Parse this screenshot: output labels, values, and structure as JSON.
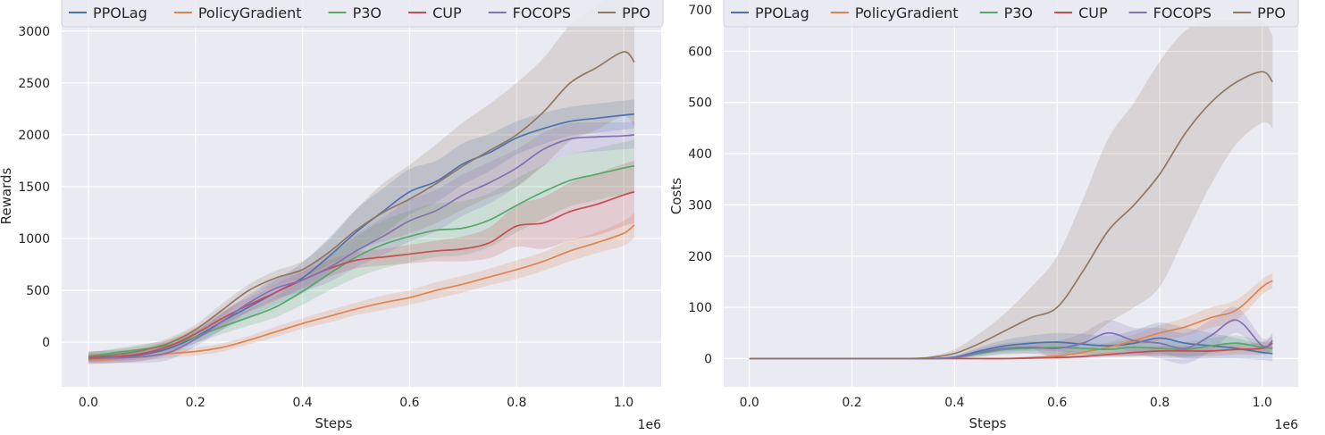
{
  "chart_data": [
    {
      "type": "line",
      "xlabel": "Steps",
      "ylabel": "Rewards",
      "x_multiplier": "1e6",
      "xlim": [
        -0.05,
        1.07
      ],
      "ylim": [
        -430,
        3300
      ],
      "xticks": [
        0.0,
        0.2,
        0.4,
        0.6,
        0.8,
        1.0
      ],
      "xtick_labels": [
        "0.0",
        "0.2",
        "0.4",
        "0.6",
        "0.8",
        "1.0"
      ],
      "yticks": [
        0,
        500,
        1000,
        1500,
        2000,
        2500,
        3000
      ],
      "ytick_labels": [
        "0",
        "500",
        "1000",
        "1500",
        "2000",
        "2500",
        "3000"
      ],
      "grid": true,
      "legend_position": "top",
      "x": [
        0.0,
        0.05,
        0.1,
        0.15,
        0.2,
        0.25,
        0.3,
        0.35,
        0.4,
        0.45,
        0.5,
        0.55,
        0.6,
        0.65,
        0.7,
        0.75,
        0.8,
        0.85,
        0.9,
        0.95,
        1.0,
        1.02
      ],
      "series": [
        {
          "name": "PPOLag",
          "color": "#4c72b0",
          "values": [
            -150,
            -140,
            -120,
            -60,
            50,
            200,
            340,
            480,
            620,
            830,
            1060,
            1260,
            1450,
            1550,
            1720,
            1830,
            1970,
            2060,
            2130,
            2160,
            2190,
            2200
          ],
          "band": [
            60,
            60,
            60,
            60,
            60,
            80,
            100,
            120,
            150,
            180,
            220,
            220,
            220,
            200,
            200,
            180,
            160,
            150,
            140,
            140,
            140,
            140
          ]
        },
        {
          "name": "PolicyGradient",
          "color": "#dd8452",
          "values": [
            -170,
            -160,
            -140,
            -110,
            -90,
            -50,
            20,
            100,
            180,
            250,
            320,
            380,
            430,
            500,
            560,
            630,
            700,
            780,
            880,
            960,
            1050,
            1130
          ],
          "band": [
            40,
            40,
            40,
            40,
            40,
            40,
            40,
            50,
            50,
            60,
            60,
            70,
            70,
            80,
            80,
            80,
            90,
            90,
            100,
            100,
            120,
            120
          ]
        },
        {
          "name": "P3O",
          "color": "#55a868",
          "values": [
            -140,
            -100,
            -70,
            -30,
            50,
            150,
            240,
            340,
            490,
            660,
            820,
            940,
            1020,
            1080,
            1100,
            1180,
            1320,
            1450,
            1560,
            1620,
            1680,
            1700
          ],
          "band": [
            40,
            40,
            50,
            50,
            60,
            70,
            80,
            100,
            130,
            160,
            200,
            230,
            250,
            260,
            260,
            260,
            260,
            260,
            250,
            250,
            250,
            250
          ]
        },
        {
          "name": "CUP",
          "color": "#c44e52",
          "values": [
            -150,
            -140,
            -110,
            -40,
            80,
            230,
            360,
            480,
            600,
            710,
            790,
            820,
            850,
            880,
            900,
            960,
            1120,
            1150,
            1260,
            1330,
            1420,
            1450
          ],
          "band": [
            40,
            40,
            50,
            60,
            60,
            70,
            70,
            80,
            80,
            80,
            80,
            80,
            90,
            100,
            120,
            150,
            200,
            250,
            280,
            300,
            300,
            300
          ]
        },
        {
          "name": "FOCOPS",
          "color": "#8172b3",
          "values": [
            -160,
            -150,
            -140,
            -100,
            30,
            200,
            380,
            520,
            600,
            720,
            880,
            1020,
            1170,
            1270,
            1420,
            1540,
            1680,
            1860,
            1960,
            1980,
            1990,
            2000
          ],
          "band": [
            40,
            50,
            60,
            70,
            70,
            80,
            80,
            100,
            110,
            140,
            160,
            180,
            200,
            200,
            200,
            200,
            180,
            160,
            150,
            140,
            130,
            130
          ]
        },
        {
          "name": "PPO",
          "color": "#937860",
          "values": [
            -140,
            -120,
            -80,
            -10,
            120,
            310,
            500,
            620,
            700,
            870,
            1080,
            1250,
            1380,
            1530,
            1700,
            1850,
            2000,
            2220,
            2500,
            2650,
            2800,
            2700
          ],
          "band": [
            50,
            50,
            50,
            50,
            50,
            60,
            60,
            70,
            80,
            120,
            200,
            280,
            330,
            380,
            420,
            450,
            500,
            520,
            560,
            600,
            620,
            620
          ]
        }
      ]
    },
    {
      "type": "line",
      "xlabel": "Steps",
      "ylabel": "Costs",
      "x_multiplier": "1e6",
      "xlim": [
        -0.05,
        1.07
      ],
      "ylim": [
        -55,
        700
      ],
      "xticks": [
        0.0,
        0.2,
        0.4,
        0.6,
        0.8,
        1.0
      ],
      "xtick_labels": [
        "0.0",
        "0.2",
        "0.4",
        "0.6",
        "0.8",
        "1.0"
      ],
      "yticks": [
        0,
        100,
        200,
        300,
        400,
        500,
        600,
        700
      ],
      "ytick_labels": [
        "0",
        "100",
        "200",
        "300",
        "400",
        "500",
        "600",
        "700"
      ],
      "grid": true,
      "legend_position": "top",
      "x": [
        0.0,
        0.05,
        0.1,
        0.15,
        0.2,
        0.25,
        0.3,
        0.35,
        0.4,
        0.45,
        0.5,
        0.55,
        0.6,
        0.65,
        0.7,
        0.75,
        0.8,
        0.85,
        0.9,
        0.95,
        1.0,
        1.02
      ],
      "series": [
        {
          "name": "PPOLag",
          "color": "#4c72b0",
          "values": [
            0,
            0,
            0,
            0,
            0,
            0,
            0,
            0,
            3,
            15,
            25,
            30,
            32,
            28,
            25,
            30,
            40,
            30,
            25,
            20,
            12,
            10
          ],
          "band": [
            0,
            0,
            0,
            0,
            0,
            0,
            0,
            0,
            3,
            8,
            12,
            15,
            18,
            20,
            20,
            25,
            30,
            30,
            25,
            20,
            15,
            15
          ]
        },
        {
          "name": "PolicyGradient",
          "color": "#dd8452",
          "values": [
            0,
            0,
            0,
            0,
            0,
            0,
            0,
            0,
            0,
            0,
            0,
            2,
            5,
            12,
            22,
            35,
            50,
            62,
            80,
            95,
            140,
            152
          ],
          "band": [
            0,
            0,
            0,
            0,
            0,
            0,
            0,
            0,
            0,
            0,
            1,
            3,
            5,
            8,
            10,
            12,
            15,
            18,
            20,
            20,
            15,
            15
          ]
        },
        {
          "name": "P3O",
          "color": "#55a868",
          "values": [
            0,
            0,
            0,
            0,
            0,
            0,
            0,
            0,
            2,
            10,
            18,
            20,
            22,
            20,
            18,
            22,
            20,
            18,
            25,
            30,
            22,
            20
          ],
          "band": [
            0,
            0,
            0,
            0,
            0,
            0,
            0,
            0,
            2,
            6,
            10,
            10,
            12,
            12,
            12,
            15,
            15,
            15,
            15,
            15,
            12,
            12
          ]
        },
        {
          "name": "CUP",
          "color": "#c44e52",
          "values": [
            0,
            0,
            0,
            0,
            0,
            0,
            0,
            0,
            0,
            0,
            0,
            1,
            2,
            4,
            8,
            12,
            15,
            15,
            15,
            18,
            20,
            30
          ],
          "band": [
            0,
            0,
            0,
            0,
            0,
            0,
            0,
            0,
            0,
            0,
            0,
            1,
            2,
            3,
            5,
            8,
            10,
            10,
            10,
            10,
            12,
            15
          ]
        },
        {
          "name": "FOCOPS",
          "color": "#8172b3",
          "values": [
            0,
            0,
            0,
            0,
            0,
            0,
            0,
            0,
            2,
            12,
            20,
            22,
            20,
            30,
            50,
            35,
            30,
            20,
            45,
            75,
            25,
            35
          ],
          "band": [
            0,
            0,
            0,
            0,
            0,
            0,
            0,
            0,
            2,
            8,
            10,
            12,
            15,
            20,
            25,
            25,
            30,
            30,
            30,
            25,
            15,
            15
          ]
        },
        {
          "name": "PPO",
          "color": "#937860",
          "values": [
            0,
            0,
            0,
            0,
            0,
            0,
            0,
            2,
            10,
            30,
            55,
            80,
            100,
            170,
            250,
            300,
            360,
            440,
            500,
            540,
            560,
            540
          ],
          "band": [
            0,
            0,
            0,
            0,
            0,
            0,
            0,
            2,
            8,
            20,
            35,
            60,
            100,
            140,
            180,
            200,
            220,
            200,
            160,
            120,
            100,
            90
          ]
        }
      ]
    }
  ]
}
